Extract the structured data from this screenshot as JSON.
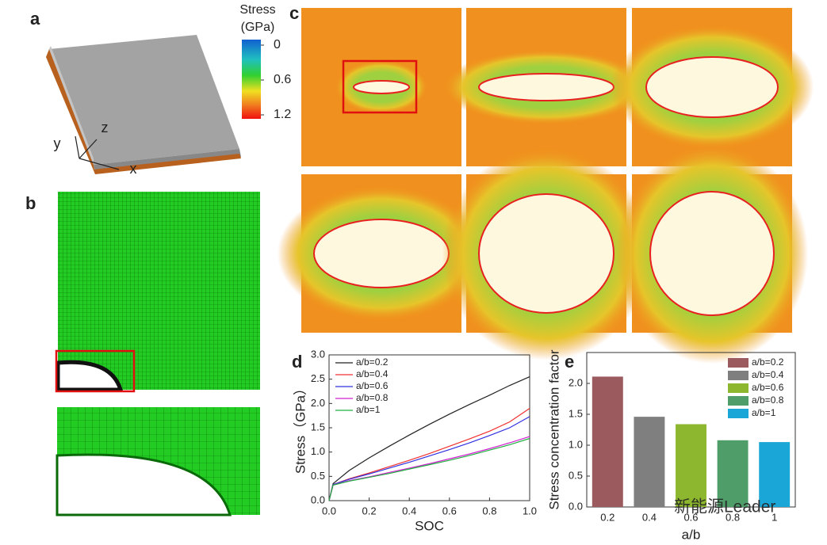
{
  "panel_labels": [
    "a",
    "b",
    "c",
    "d",
    "e"
  ],
  "axis_labels_3d": [
    "y",
    "z",
    "x"
  ],
  "colorbar": {
    "title": [
      "Stress",
      "(GPa)"
    ],
    "ticks": [
      0,
      0.6,
      1.2
    ]
  },
  "chart_data": [
    {
      "type": "line",
      "xlabel": "SOC",
      "ylabel": "Stress（GPa）",
      "x": [
        0,
        0.02,
        0.1,
        0.2,
        0.3,
        0.4,
        0.5,
        0.6,
        0.7,
        0.8,
        0.9,
        1.0
      ],
      "series": [
        {
          "name": "a/b=0.2",
          "color": "#222222",
          "values": [
            0,
            0.35,
            0.62,
            0.88,
            1.12,
            1.35,
            1.57,
            1.78,
            1.98,
            2.17,
            2.37,
            2.55
          ]
        },
        {
          "name": "a/b=0.4",
          "color": "#f03030",
          "values": [
            0,
            0.33,
            0.45,
            0.57,
            0.7,
            0.83,
            0.97,
            1.12,
            1.27,
            1.43,
            1.62,
            1.9
          ]
        },
        {
          "name": "a/b=0.6",
          "color": "#3030e0",
          "values": [
            0,
            0.33,
            0.44,
            0.55,
            0.67,
            0.79,
            0.92,
            1.05,
            1.19,
            1.34,
            1.5,
            1.73
          ]
        },
        {
          "name": "a/b=0.8",
          "color": "#d020d0",
          "values": [
            0,
            0.32,
            0.41,
            0.49,
            0.58,
            0.67,
            0.76,
            0.86,
            0.96,
            1.07,
            1.19,
            1.32
          ]
        },
        {
          "name": "a/b=1",
          "color": "#20b040",
          "values": [
            0,
            0.32,
            0.4,
            0.48,
            0.56,
            0.65,
            0.74,
            0.83,
            0.93,
            1.04,
            1.15,
            1.28
          ]
        }
      ],
      "xlim": [
        0,
        1.0
      ],
      "xticks": [
        {
          "value": 0,
          "label": "0.0"
        },
        0.2,
        0.4,
        0.6,
        0.8,
        {
          "value": 1,
          "label": "1.0"
        }
      ],
      "ylim": [
        0,
        3.0
      ],
      "yticks": [
        {
          "value": 0,
          "label": "0.0"
        },
        0.5,
        {
          "value": 1,
          "label": "1.0"
        },
        1.5,
        {
          "value": 2,
          "label": "2.0"
        },
        2.5,
        {
          "value": 3,
          "label": "3.0"
        }
      ],
      "legend": "upper left"
    },
    {
      "type": "bar",
      "xlabel": "a/b",
      "ylabel": "Stress concentration factor",
      "categories": [
        "0.2",
        "0.4",
        "0.6",
        "0.8",
        "1"
      ],
      "values": [
        2.11,
        1.46,
        1.34,
        1.08,
        1.05
      ],
      "colors": [
        "#9b5a5e",
        "#7f7f7f",
        "#8db72e",
        "#4f9e6a",
        "#1aa6d6"
      ],
      "legend_labels": [
        "a/b=0.2",
        "a/b=0.4",
        "a/b=0.6",
        "a/b=0.8",
        "a/b=1"
      ],
      "ylim": [
        0,
        2.5
      ],
      "yticks": [
        {
          "value": 0,
          "label": "0.0"
        },
        0.5,
        {
          "value": 1,
          "label": "1.0"
        },
        1.5,
        {
          "value": 2,
          "label": "2.0"
        }
      ],
      "legend": "upper right"
    }
  ],
  "watermark": "新能源Leader"
}
